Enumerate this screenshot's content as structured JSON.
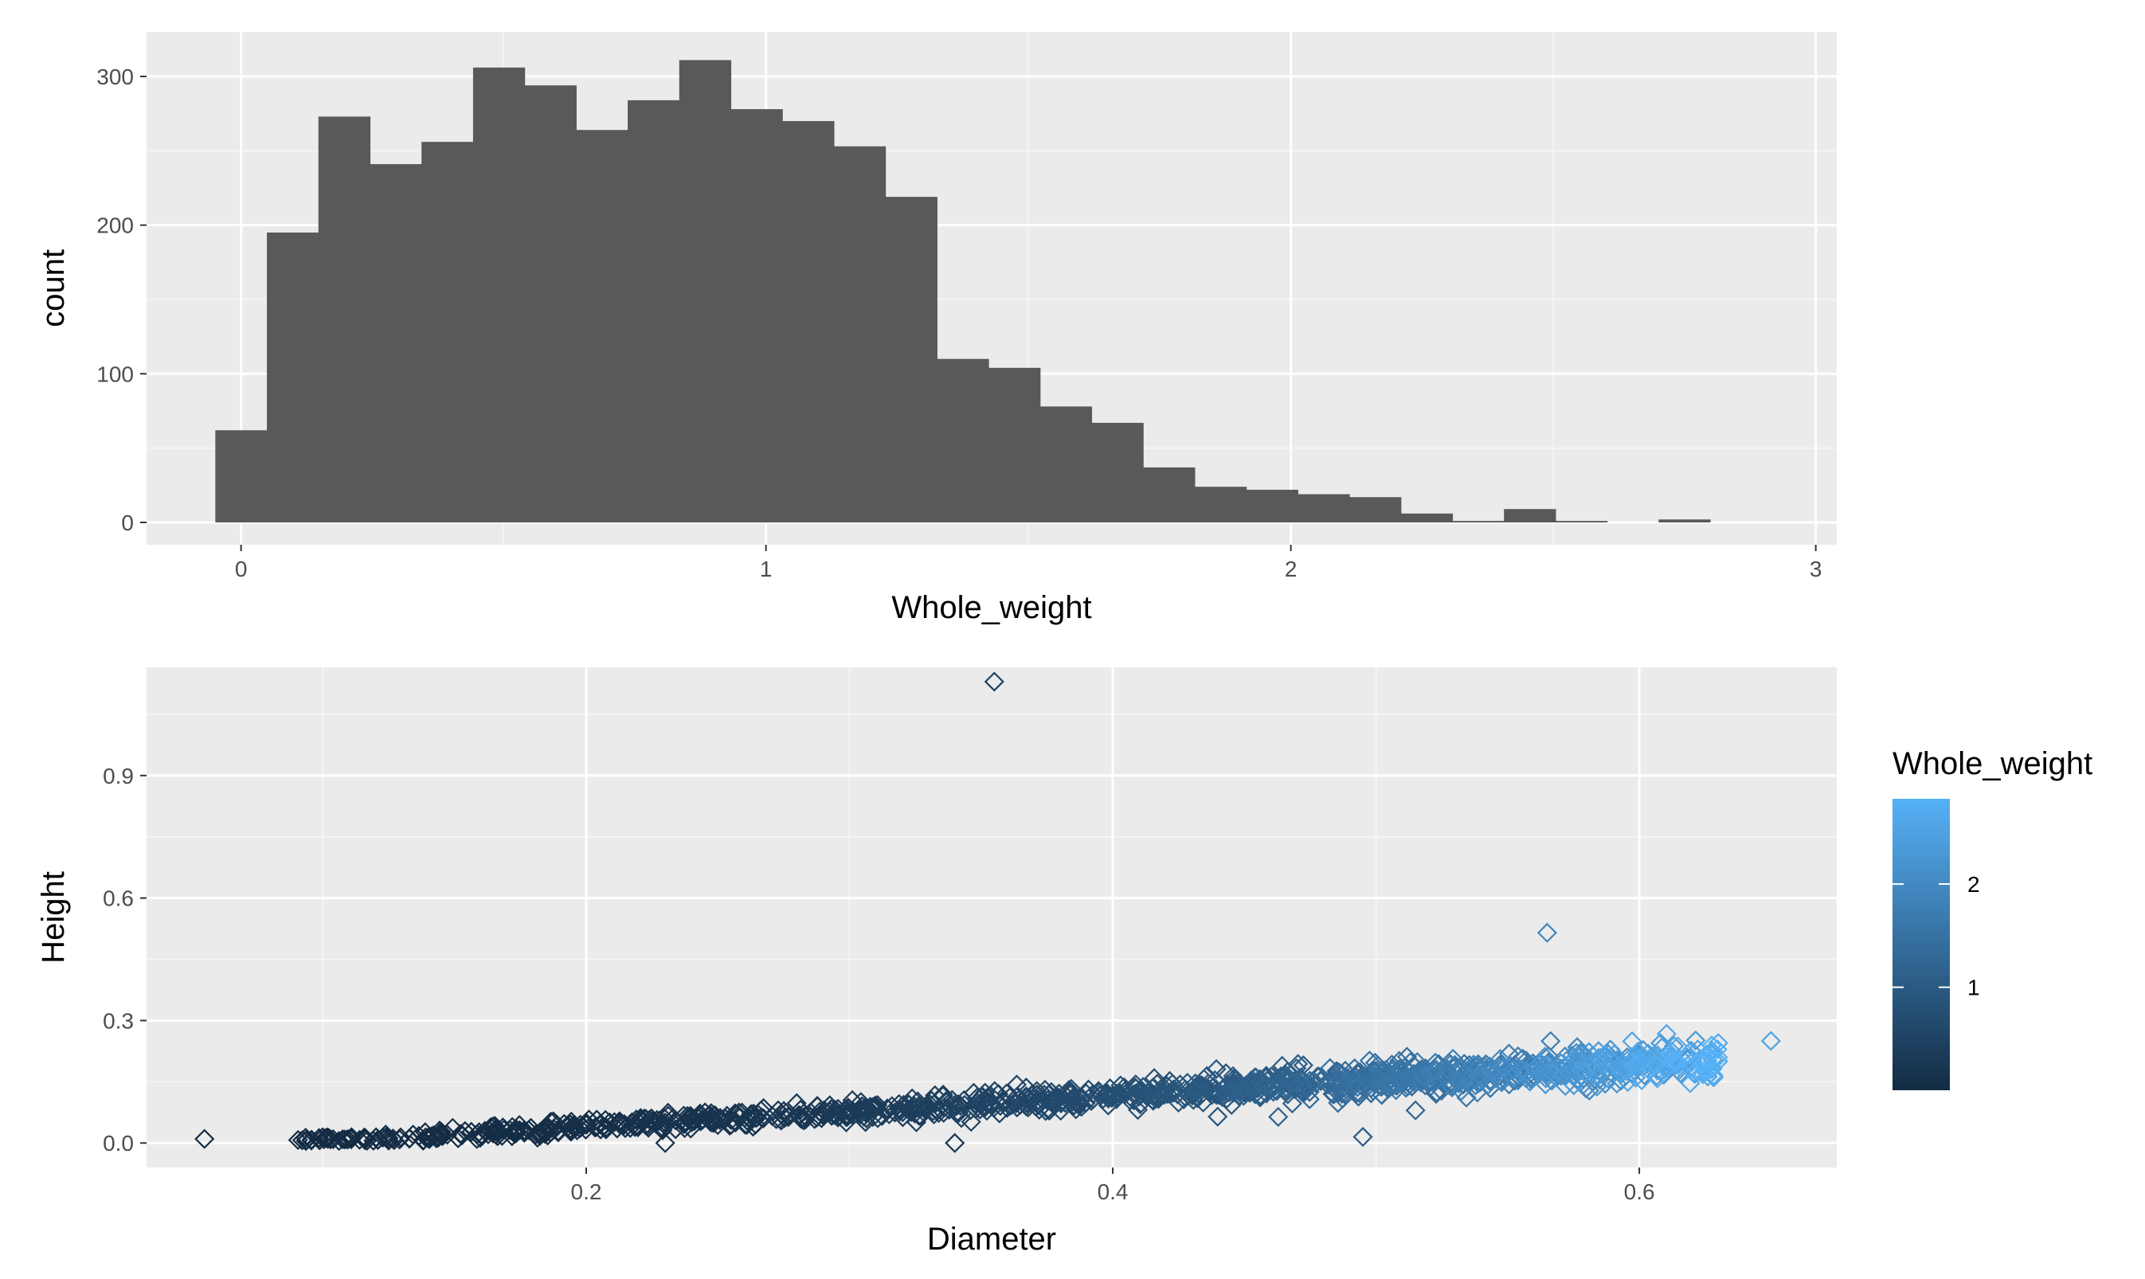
{
  "chart_data": [
    {
      "type": "bar",
      "subtype": "histogram",
      "xlabel": "Whole_weight",
      "ylabel": "count",
      "xlim": [
        -0.18,
        3.04
      ],
      "ylim": [
        -15,
        330
      ],
      "x_ticks": [
        0,
        1,
        2,
        3
      ],
      "y_ticks": [
        0,
        100,
        200,
        300
      ],
      "bin_width": 0.0982,
      "bin_start": -0.049,
      "values": [
        62,
        195,
        273,
        241,
        256,
        306,
        294,
        264,
        284,
        311,
        278,
        270,
        253,
        219,
        110,
        104,
        78,
        67,
        37,
        24,
        22,
        19,
        17,
        6,
        1,
        9,
        1,
        0,
        2
      ],
      "bar_color": "#595959",
      "panel_color": "#ebebeb",
      "grid": true
    },
    {
      "type": "scatter",
      "xlabel": "Diameter",
      "ylabel": "Height",
      "xlim": [
        0.033,
        0.675
      ],
      "ylim": [
        -0.06,
        1.165
      ],
      "x_ticks": [
        0.2,
        0.4,
        0.6
      ],
      "x_tick_labels": [
        "0.2",
        "0.4",
        "0.6"
      ],
      "y_ticks": [
        0.0,
        0.3,
        0.6,
        0.9
      ],
      "y_tick_labels": [
        "0.0",
        "0.3",
        "0.6",
        "0.9"
      ],
      "marker": "diamond-open",
      "color_scale": {
        "low": "#132b43",
        "high": "#56b1f7",
        "min": 0.002,
        "max": 2.826
      },
      "notable_points": [
        {
          "x": 0.055,
          "y": 0.01,
          "w": 0.002
        },
        {
          "x": 0.23,
          "y": 0.0,
          "w": 0.08
        },
        {
          "x": 0.34,
          "y": 0.0,
          "w": 0.2
        },
        {
          "x": 0.355,
          "y": 1.13,
          "w": 0.5
        },
        {
          "x": 0.565,
          "y": 0.515,
          "w": 1.9
        },
        {
          "x": 0.495,
          "y": 0.015,
          "w": 1.0
        },
        {
          "x": 0.515,
          "y": 0.08,
          "w": 1.2
        },
        {
          "x": 0.65,
          "y": 0.25,
          "w": 2.55
        },
        {
          "x": 0.63,
          "y": 0.245,
          "w": 2.6
        },
        {
          "x": 0.63,
          "y": 0.2,
          "w": 2.8
        }
      ],
      "trend": {
        "x_range": [
          0.09,
          0.63
        ],
        "height_intercept": -0.038,
        "height_slope": 0.385,
        "weight_coef": 11.0,
        "weight_power": 3.0,
        "n_points": 1300
      },
      "legend": {
        "title": "Whole_weight",
        "ticks": [
          1,
          2
        ],
        "tick_labels": [
          "1",
          "2"
        ],
        "placement": "right"
      },
      "panel_color": "#ebebeb",
      "grid": true
    }
  ]
}
